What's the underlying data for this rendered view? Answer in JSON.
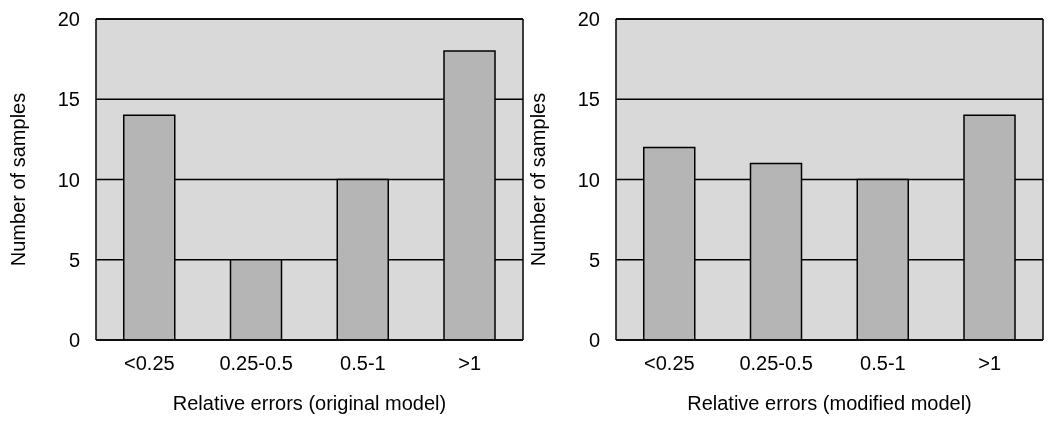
{
  "chart_data": [
    {
      "type": "bar",
      "xlabel": "Relative errors (original model)",
      "ylabel": "Number of samples",
      "categories": [
        "<0.25",
        "0.25-0.5",
        "0.5-1",
        ">1"
      ],
      "series": [
        {
          "color": "#b5b5b5",
          "values": [
            14,
            5,
            10,
            18
          ]
        }
      ],
      "ylim": [
        0,
        20
      ],
      "yticks": [
        0,
        5,
        10,
        15,
        20
      ],
      "grid": "y"
    },
    {
      "type": "bar",
      "xlabel": "Relative errors (modified model)",
      "ylabel": "Number of samples",
      "categories": [
        "<0.25",
        "0.25-0.5",
        "0.5-1",
        ">1"
      ],
      "series": [
        {
          "color": "#b5b5b5",
          "values": [
            12,
            11,
            10,
            14
          ]
        }
      ],
      "ylim": [
        0,
        20
      ],
      "yticks": [
        0,
        5,
        10,
        15,
        20
      ],
      "grid": "y"
    }
  ]
}
